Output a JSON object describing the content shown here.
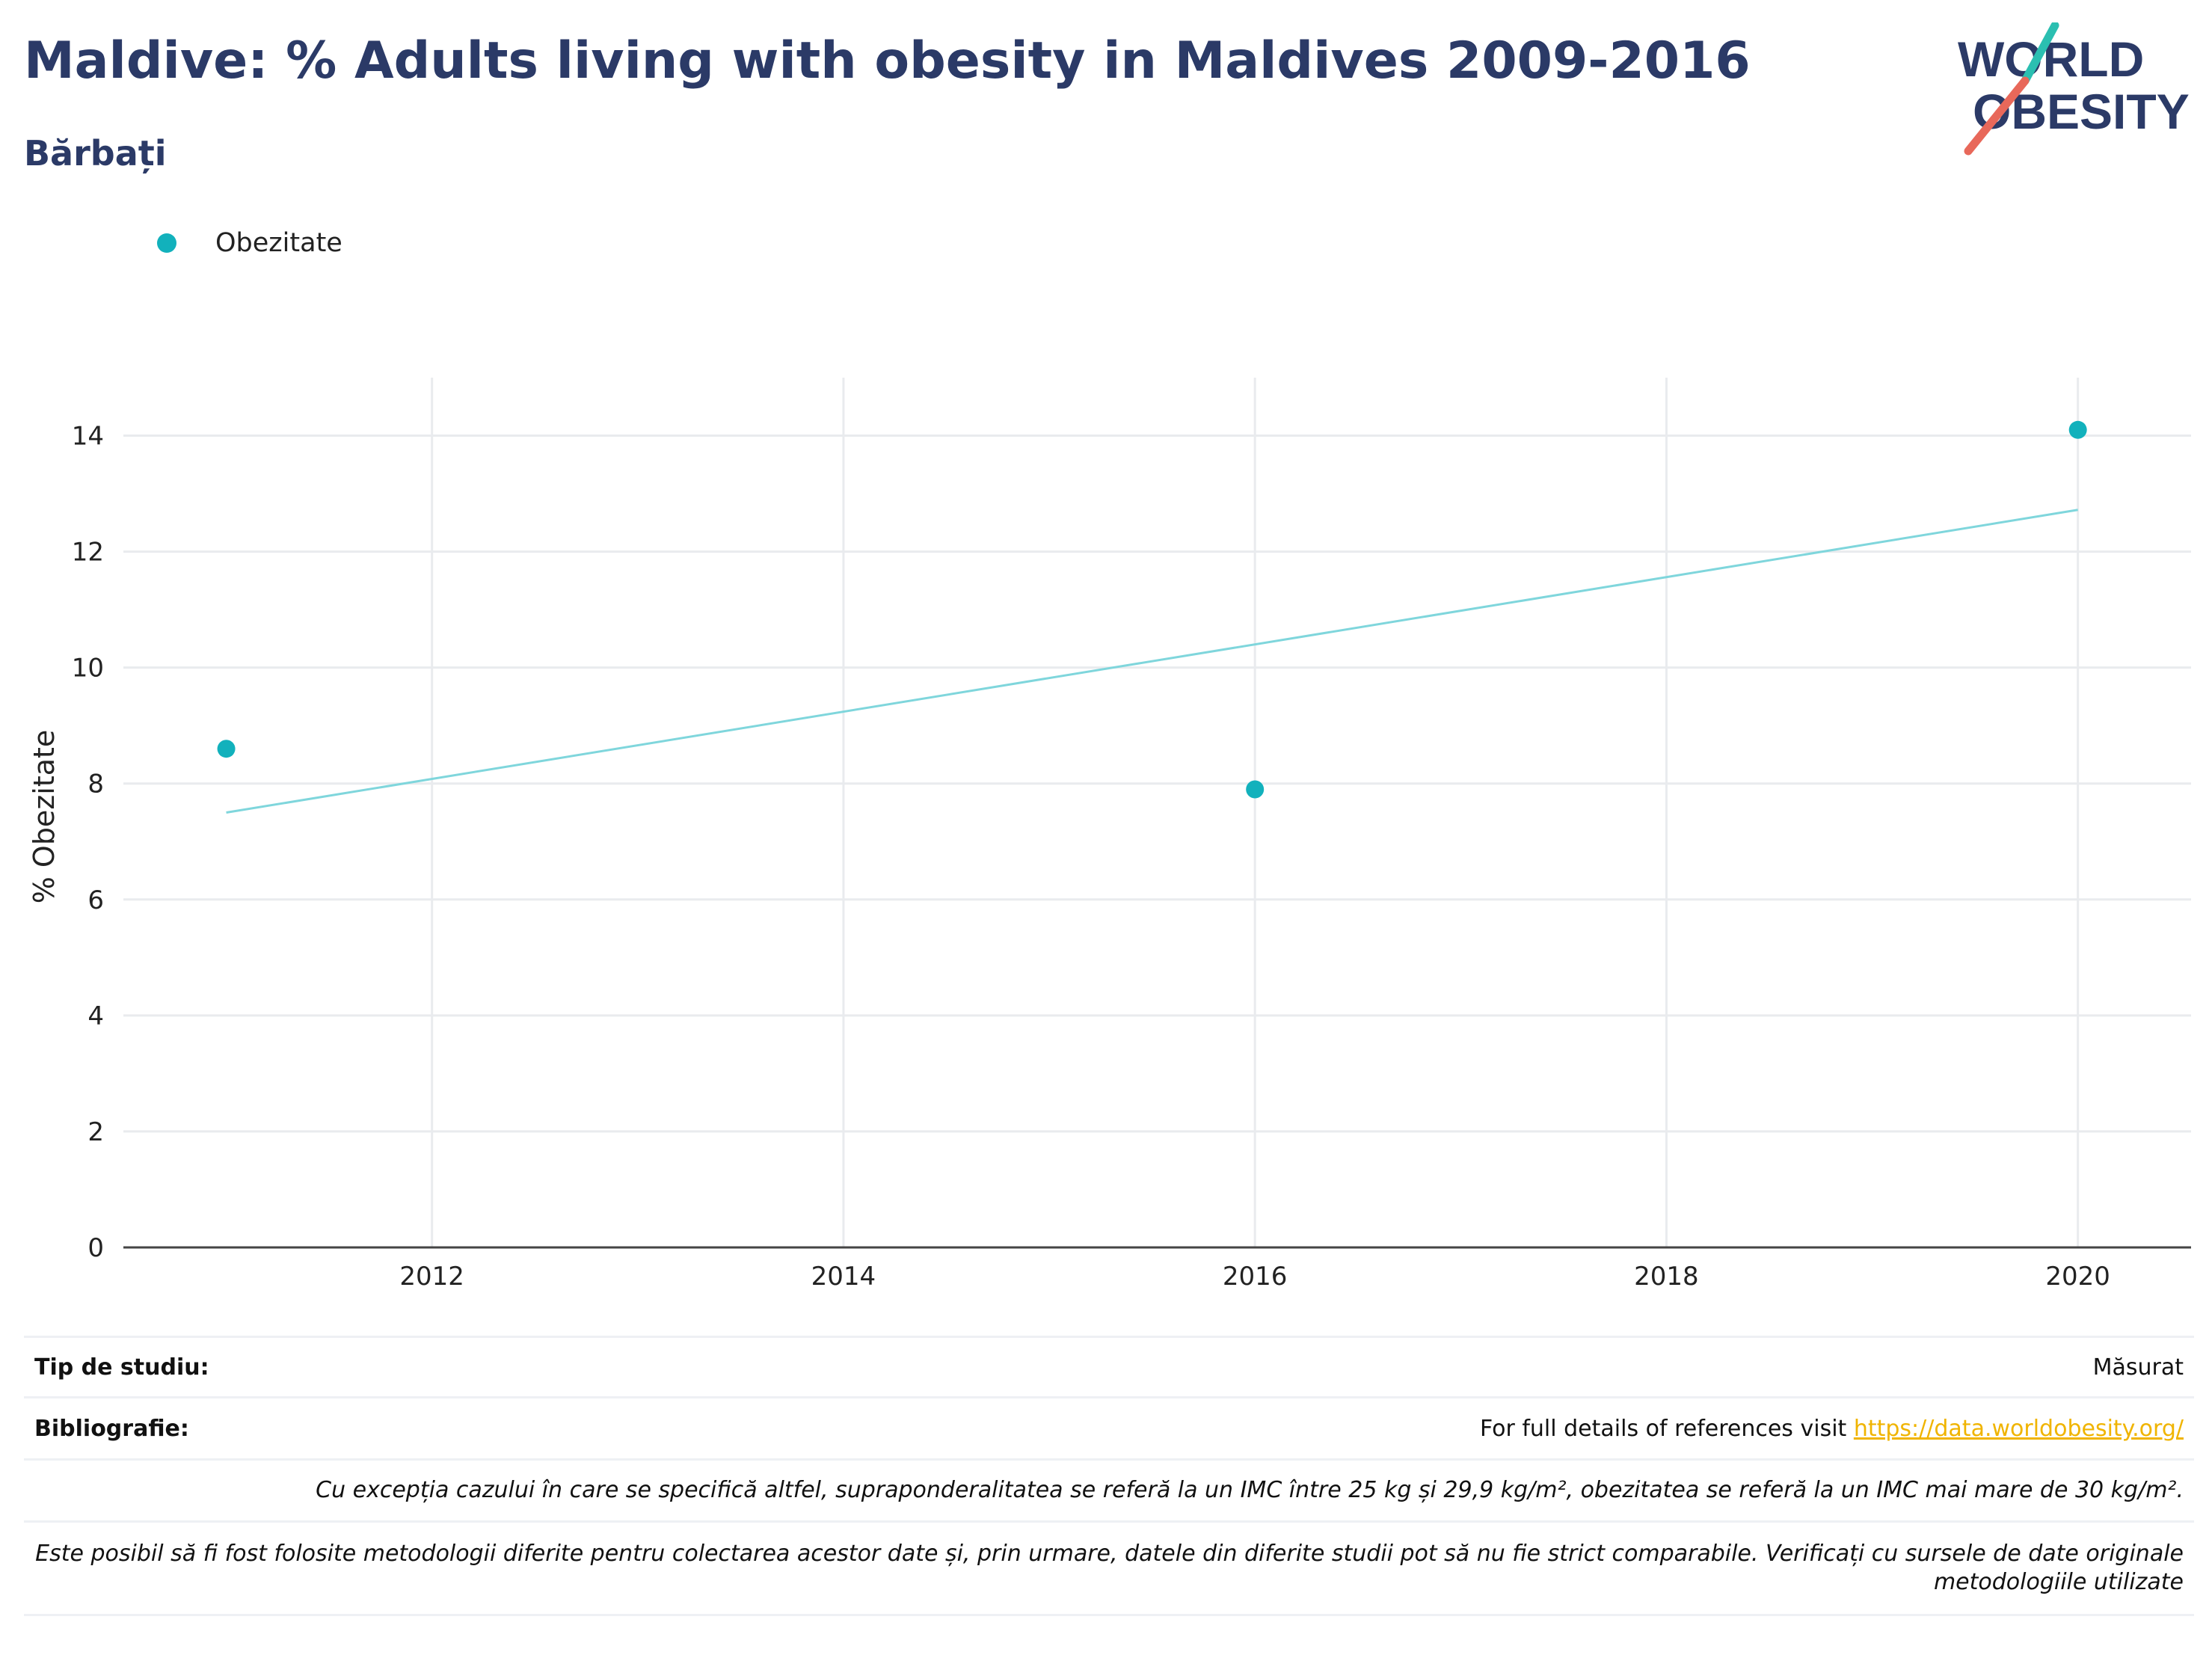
{
  "header": {
    "title": "Maldive: % Adults living with obesity in Maldives 2009-2016",
    "subtitle": "Bărbați",
    "logo": {
      "line1": "WORLD",
      "line2": "OBESITY"
    }
  },
  "legend": {
    "label": "Obezitate",
    "color": "#12b1bc"
  },
  "colors": {
    "points": "#12b1bc",
    "trend": "#7fd6dc",
    "grid": "#e9ebee",
    "axis": "#444444",
    "title": "#2b3a67"
  },
  "chart_data": {
    "type": "scatter",
    "title": "Maldive: % Adults living with obesity in Maldives 2009-2016",
    "subtitle": "Bărbați",
    "ylabel": "% Obezitate",
    "xlabel": "",
    "xlim": [
      2010.5,
      2020.55
    ],
    "ylim": [
      0,
      15
    ],
    "xticks": [
      2012,
      2014,
      2016,
      2018,
      2020
    ],
    "yticks": [
      0,
      2,
      4,
      6,
      8,
      10,
      12,
      14
    ],
    "grid": true,
    "legend_position": "top-left",
    "series": [
      {
        "name": "Obezitate",
        "x": [
          2011,
          2016,
          2020
        ],
        "y": [
          8.6,
          7.9,
          14.1
        ]
      }
    ],
    "trendline": {
      "x": [
        2011,
        2020
      ],
      "y": [
        7.5,
        12.72
      ]
    }
  },
  "info": {
    "study_type_label": "Tip de studiu:",
    "study_type_value": "Măsurat",
    "bibliography_label": "Bibliografie:",
    "bibliography_text": "For full details of references visit",
    "bibliography_link": "https://data.worldobesity.org/",
    "note1": "Cu excepția cazului în care se specifică altfel, supraponderalitatea se referă la un IMC între 25 kg și 29,9 kg/m², obezitatea se referă la un IMC mai mare de 30 kg/m².",
    "note2": "Este posibil să fi fost folosite metodologii diferite pentru colectarea acestor date și, prin urmare, datele din diferite studii pot să nu fie strict comparabile. Verificați cu sursele de date originale metodologiile utilizate"
  }
}
